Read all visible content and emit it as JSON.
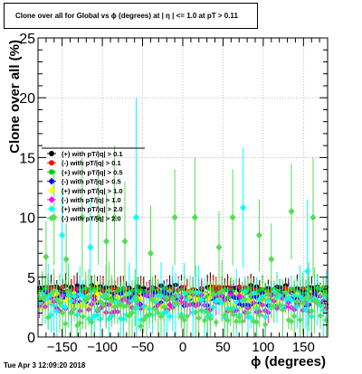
{
  "title": "Clone  over all for Global vs ϕ (degrees) at | η | <= 1.0 at pT > 0.11",
  "timestamp": "Tue Apr  3 12:09:20 2018",
  "chart_data": {
    "type": "scatter",
    "title": "Clone  over all for Global vs ϕ (degrees) at | η | <= 1.0 at pT > 0.11",
    "xlabel": "ϕ (degrees)",
    "ylabel": "Clone  over all (%)",
    "xlim": [
      -180,
      180
    ],
    "ylim": [
      0,
      25
    ],
    "x_ticks": [
      -150,
      -100,
      -50,
      0,
      50,
      100,
      150
    ],
    "y_ticks": [
      0,
      5,
      10,
      15,
      20,
      25
    ],
    "grid": true,
    "legend_position": "left-middle",
    "bins": 100,
    "series": [
      {
        "name": "(+) with pT/|q| > 0.1",
        "color": "#000000",
        "marker": "circle",
        "level": 4.0,
        "spread": 0.35
      },
      {
        "name": "(-) with pT/|q| > 0.1",
        "color": "#ff0000",
        "marker": "circle",
        "level": 3.8,
        "spread": 0.4
      },
      {
        "name": "(+) with pT/|q| > 0.5",
        "color": "#00cc00",
        "marker": "circle",
        "level": 3.6,
        "spread": 0.5
      },
      {
        "name": "(-) with pT/|q| > 0.5",
        "color": "#0000ff",
        "marker": "diamond",
        "level": 3.2,
        "spread": 0.6
      },
      {
        "name": "(+) with pT/|q| > 1.0",
        "color": "#ffff00",
        "marker": "diamond",
        "level": 3.0,
        "spread": 0.7
      },
      {
        "name": "(-) with pT/|q| > 1.0",
        "color": "#ff00ff",
        "marker": "diamond",
        "level": 2.8,
        "spread": 0.8
      },
      {
        "name": "(+) with pT/|q| > 2.0",
        "color": "#00ffff",
        "marker": "diamond",
        "level": 2.6,
        "spread": 1.2
      },
      {
        "name": "(-) with pT/|q| > 2.0",
        "color": "#55dd55",
        "marker": "diamond",
        "level": 2.4,
        "spread": 1.5
      }
    ],
    "outliers": [
      {
        "series": 7,
        "x": -170,
        "y": 6.7,
        "err": 3
      },
      {
        "series": 7,
        "x": -160,
        "y": 10.0,
        "err": 4
      },
      {
        "series": 7,
        "x": -145,
        "y": 6.5,
        "err": 3
      },
      {
        "series": 7,
        "x": -125,
        "y": 10.0,
        "err": 5
      },
      {
        "series": 7,
        "x": -105,
        "y": 10.0,
        "err": 4
      },
      {
        "series": 7,
        "x": -95,
        "y": 8.0,
        "err": 4
      },
      {
        "series": 7,
        "x": -85,
        "y": 10.0,
        "err": 6
      },
      {
        "series": 7,
        "x": -72,
        "y": 8.0,
        "err": 5
      },
      {
        "series": 7,
        "x": -40,
        "y": 7.0,
        "err": 4
      },
      {
        "series": 7,
        "x": -10,
        "y": 10.0,
        "err": 4
      },
      {
        "series": 7,
        "x": 15,
        "y": 10.0,
        "err": 5
      },
      {
        "series": 7,
        "x": 45,
        "y": 7.5,
        "err": 3
      },
      {
        "series": 7,
        "x": 62,
        "y": 10.0,
        "err": 4
      },
      {
        "series": 7,
        "x": 95,
        "y": 8.5,
        "err": 3
      },
      {
        "series": 7,
        "x": 110,
        "y": 6.5,
        "err": 3
      },
      {
        "series": 7,
        "x": 135,
        "y": 10.5,
        "err": 4
      },
      {
        "series": 7,
        "x": 162,
        "y": 10.0,
        "err": 5
      },
      {
        "series": 6,
        "x": -150,
        "y": 8.5,
        "err": 4
      },
      {
        "series": 6,
        "x": -115,
        "y": 7.5,
        "err": 4
      },
      {
        "series": 6,
        "x": -58,
        "y": 10.0,
        "err": 10
      },
      {
        "series": 6,
        "x": 75,
        "y": 10.8,
        "err": 5
      },
      {
        "series": 6,
        "x": 155,
        "y": 5.5,
        "err": 6
      }
    ]
  }
}
